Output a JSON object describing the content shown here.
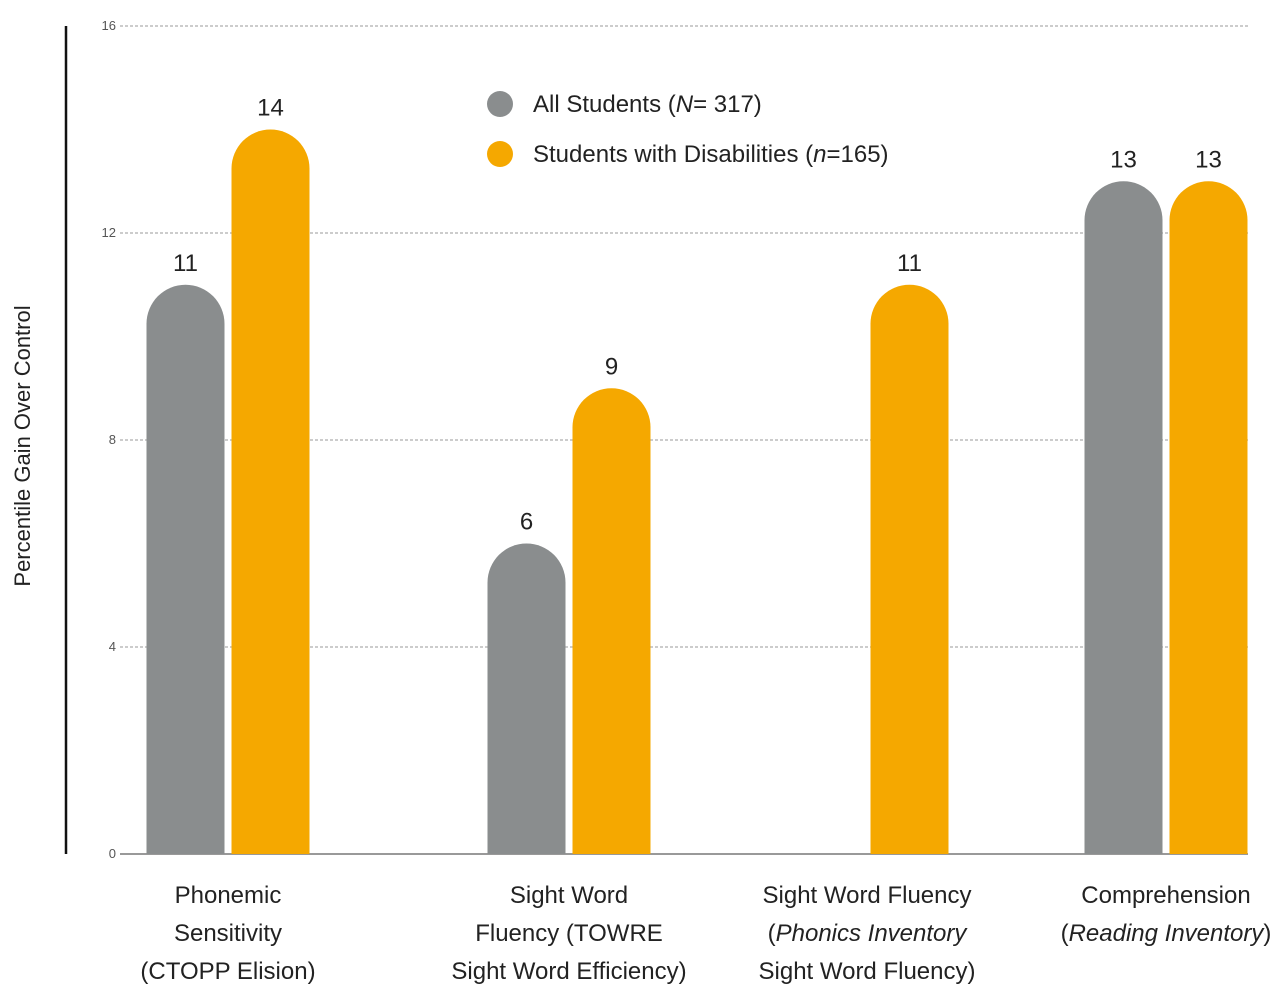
{
  "chart_data": {
    "type": "bar",
    "ylabel": "Percentile Gain Over Control",
    "xlabel": "",
    "ylim": [
      0,
      16
    ],
    "yticks": [
      "0",
      "4",
      "8",
      "12",
      "16"
    ],
    "grid": true,
    "legend": {
      "placement": "top-center",
      "entries": [
        {
          "text": "All Students (",
          "var": "N",
          "eq": "= 317)",
          "color": "#8a8d8e"
        },
        {
          "text": "Students with Disabilities (",
          "var": "n",
          "eq": "=165)",
          "color": "#f5a800"
        }
      ]
    },
    "series": [
      {
        "name": "All Students (N = 317)",
        "color": "#8a8d8e",
        "values": [
          11,
          6,
          null,
          13
        ],
        "labels": [
          "11",
          "6",
          "",
          "13"
        ]
      },
      {
        "name": "Students with Disabilities (n = 165)",
        "color": "#f5a800",
        "values": [
          14,
          9,
          11,
          13
        ],
        "labels": [
          "14",
          "9",
          "11",
          "13"
        ]
      }
    ],
    "categories": [
      {
        "lines": [
          [
            {
              "t": "Phonemic"
            }
          ],
          [
            {
              "t": "Sensitivity"
            }
          ],
          [
            {
              "t": "(CTOPP Elision)"
            }
          ]
        ]
      },
      {
        "lines": [
          [
            {
              "t": "Sight Word"
            }
          ],
          [
            {
              "t": "Fluency (TOWRE"
            }
          ],
          [
            {
              "t": "Sight Word Efficiency)"
            }
          ]
        ]
      },
      {
        "lines": [
          [
            {
              "t": "Sight Word Fluency"
            }
          ],
          [
            {
              "t": "("
            },
            {
              "t": "Phonics Inventory",
              "i": true
            }
          ],
          [
            {
              "t": "Sight Word Fluency)"
            }
          ]
        ]
      },
      {
        "lines": [
          [
            {
              "t": "Comprehension"
            }
          ],
          [
            {
              "t": "("
            },
            {
              "t": "Reading Inventory",
              "i": true
            },
            {
              "t": ")"
            }
          ]
        ]
      }
    ]
  }
}
